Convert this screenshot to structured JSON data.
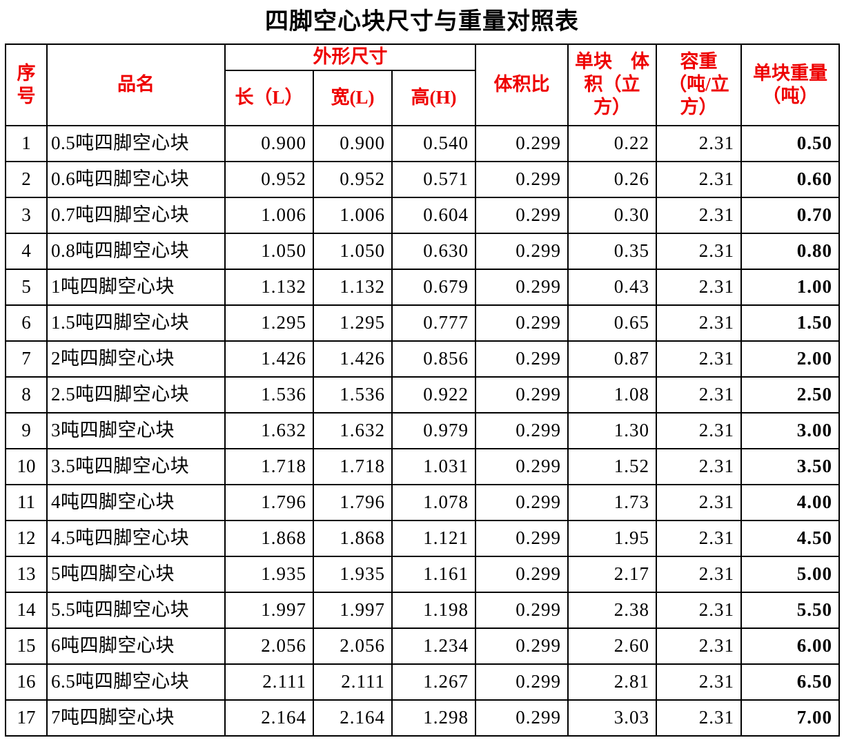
{
  "title": "四脚空心块尺寸与重量对照表",
  "colors": {
    "header_text": "#ee0000",
    "body_text": "#000000",
    "border": "#000000",
    "background": "#ffffff"
  },
  "table": {
    "header": {
      "col_index": "序\n号",
      "col_name": "品名",
      "group_dimensions": "外形尺寸",
      "col_length": "长（L）",
      "col_width": "宽(L)",
      "col_height": "高(H)",
      "col_volume_ratio": "体积比",
      "col_unit_volume": "单块　体\n积（立\n方）",
      "col_bulk_density": "容重\n（吨/立\n方）",
      "col_unit_weight": "单块重量\n（吨）"
    },
    "rows": [
      {
        "index": "1",
        "name": "0.5吨四脚空心块",
        "length": "0.900",
        "width": "0.900",
        "height": "0.540",
        "volume_ratio": "0.299",
        "unit_volume": "0.22",
        "bulk_density": "2.31",
        "unit_weight": "0.50"
      },
      {
        "index": "2",
        "name": "0.6吨四脚空心块",
        "length": "0.952",
        "width": "0.952",
        "height": "0.571",
        "volume_ratio": "0.299",
        "unit_volume": "0.26",
        "bulk_density": "2.31",
        "unit_weight": "0.60"
      },
      {
        "index": "3",
        "name": "0.7吨四脚空心块",
        "length": "1.006",
        "width": "1.006",
        "height": "0.604",
        "volume_ratio": "0.299",
        "unit_volume": "0.30",
        "bulk_density": "2.31",
        "unit_weight": "0.70"
      },
      {
        "index": "4",
        "name": "0.8吨四脚空心块",
        "length": "1.050",
        "width": "1.050",
        "height": "0.630",
        "volume_ratio": "0.299",
        "unit_volume": "0.35",
        "bulk_density": "2.31",
        "unit_weight": "0.80"
      },
      {
        "index": "5",
        "name": "1吨四脚空心块",
        "length": "1.132",
        "width": "1.132",
        "height": "0.679",
        "volume_ratio": "0.299",
        "unit_volume": "0.43",
        "bulk_density": "2.31",
        "unit_weight": "1.00"
      },
      {
        "index": "6",
        "name": "1.5吨四脚空心块",
        "length": "1.295",
        "width": "1.295",
        "height": "0.777",
        "volume_ratio": "0.299",
        "unit_volume": "0.65",
        "bulk_density": "2.31",
        "unit_weight": "1.50"
      },
      {
        "index": "7",
        "name": "2吨四脚空心块",
        "length": "1.426",
        "width": "1.426",
        "height": "0.856",
        "volume_ratio": "0.299",
        "unit_volume": "0.87",
        "bulk_density": "2.31",
        "unit_weight": "2.00"
      },
      {
        "index": "8",
        "name": "2.5吨四脚空心块",
        "length": "1.536",
        "width": "1.536",
        "height": "0.922",
        "volume_ratio": "0.299",
        "unit_volume": "1.08",
        "bulk_density": "2.31",
        "unit_weight": "2.50"
      },
      {
        "index": "9",
        "name": "3吨四脚空心块",
        "length": "1.632",
        "width": "1.632",
        "height": "0.979",
        "volume_ratio": "0.299",
        "unit_volume": "1.30",
        "bulk_density": "2.31",
        "unit_weight": "3.00"
      },
      {
        "index": "10",
        "name": "3.5吨四脚空心块",
        "length": "1.718",
        "width": "1.718",
        "height": "1.031",
        "volume_ratio": "0.299",
        "unit_volume": "1.52",
        "bulk_density": "2.31",
        "unit_weight": "3.50"
      },
      {
        "index": "11",
        "name": "4吨四脚空心块",
        "length": "1.796",
        "width": "1.796",
        "height": "1.078",
        "volume_ratio": "0.299",
        "unit_volume": "1.73",
        "bulk_density": "2.31",
        "unit_weight": "4.00"
      },
      {
        "index": "12",
        "name": "4.5吨四脚空心块",
        "length": "1.868",
        "width": "1.868",
        "height": "1.121",
        "volume_ratio": "0.299",
        "unit_volume": "1.95",
        "bulk_density": "2.31",
        "unit_weight": "4.50"
      },
      {
        "index": "13",
        "name": "5吨四脚空心块",
        "length": "1.935",
        "width": "1.935",
        "height": "1.161",
        "volume_ratio": "0.299",
        "unit_volume": "2.17",
        "bulk_density": "2.31",
        "unit_weight": "5.00"
      },
      {
        "index": "14",
        "name": "5.5吨四脚空心块",
        "length": "1.997",
        "width": "1.997",
        "height": "1.198",
        "volume_ratio": "0.299",
        "unit_volume": "2.38",
        "bulk_density": "2.31",
        "unit_weight": "5.50"
      },
      {
        "index": "15",
        "name": "6吨四脚空心块",
        "length": "2.056",
        "width": "2.056",
        "height": "1.234",
        "volume_ratio": "0.299",
        "unit_volume": "2.60",
        "bulk_density": "2.31",
        "unit_weight": "6.00"
      },
      {
        "index": "16",
        "name": "6.5吨四脚空心块",
        "length": "2.111",
        "width": "2.111",
        "height": "1.267",
        "volume_ratio": "0.299",
        "unit_volume": "2.81",
        "bulk_density": "2.31",
        "unit_weight": "6.50"
      },
      {
        "index": "17",
        "name": "7吨四脚空心块",
        "length": "2.164",
        "width": "2.164",
        "height": "1.298",
        "volume_ratio": "0.299",
        "unit_volume": "3.03",
        "bulk_density": "2.31",
        "unit_weight": "7.00"
      }
    ]
  }
}
